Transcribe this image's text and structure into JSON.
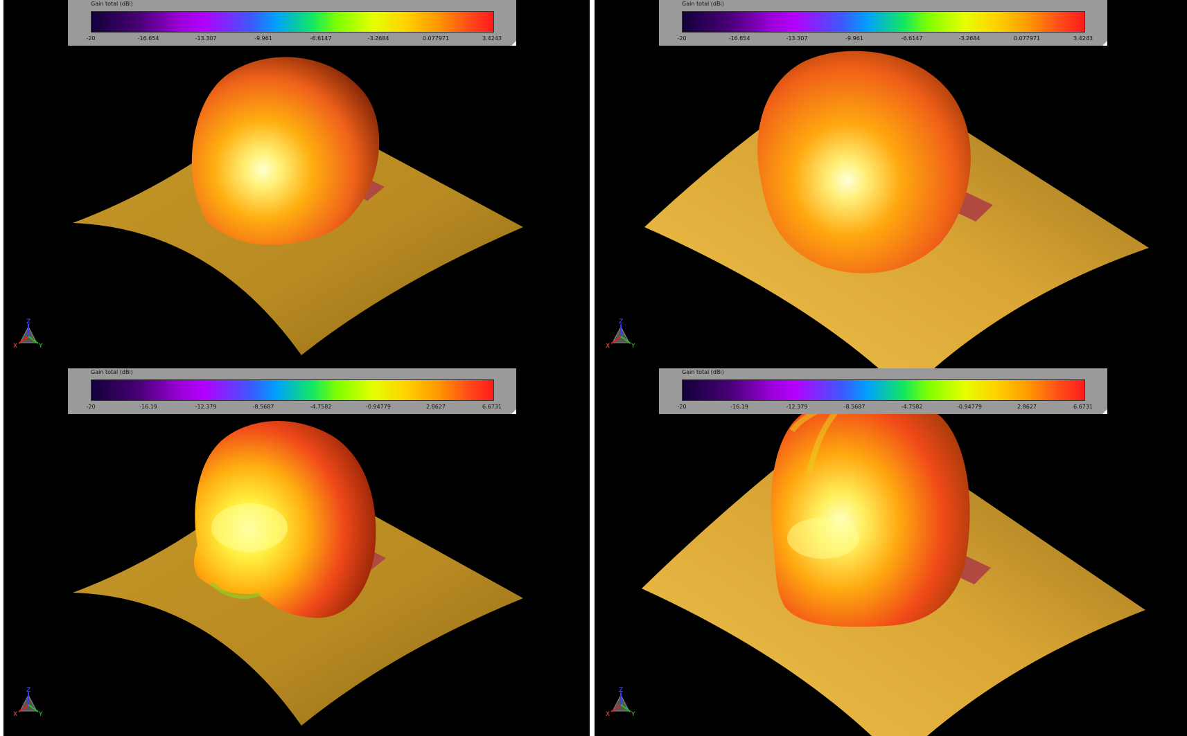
{
  "panels": [
    {
      "legend": {
        "title": "Gain total (dBi)",
        "ticks": [
          "-20",
          "-16.654",
          "-13.307",
          "-9.961",
          "-6.6147",
          "-3.2684",
          "0.077971",
          "3.4243"
        ]
      },
      "triad": {
        "z": "Z",
        "x": "X",
        "y": "Y"
      }
    },
    {
      "legend": {
        "title": "Gain total (dBi)",
        "ticks": [
          "-20",
          "-16.654",
          "-13.307",
          "-9.961",
          "-6.6147",
          "-3.2684",
          "0.077971",
          "3.4243"
        ]
      },
      "triad": {
        "z": "Z",
        "x": "X",
        "y": "Y"
      }
    },
    {
      "legend": {
        "title": "Gain total (dBi)",
        "ticks": [
          "-20",
          "-16.19",
          "-12.379",
          "-8.5687",
          "-4.7582",
          "-0.94779",
          "2.8627",
          "6.6731"
        ]
      },
      "triad": {
        "z": "Z",
        "x": "X",
        "y": "Y"
      }
    },
    {
      "legend": {
        "title": "Gain total (dBi)",
        "ticks": [
          "-20",
          "-16.19",
          "-12.379",
          "-8.5687",
          "-4.7582",
          "-0.94779",
          "2.8627",
          "6.6731"
        ]
      },
      "triad": {
        "z": "Z",
        "x": "X",
        "y": "Y"
      }
    }
  ],
  "colors": {
    "background": "#000000",
    "surface": "#c9962a",
    "pattern_hot": "#ff3a10",
    "pattern_mid": "#ffa500",
    "pattern_cool": "#c8e81e",
    "patch": "#b04a40"
  }
}
